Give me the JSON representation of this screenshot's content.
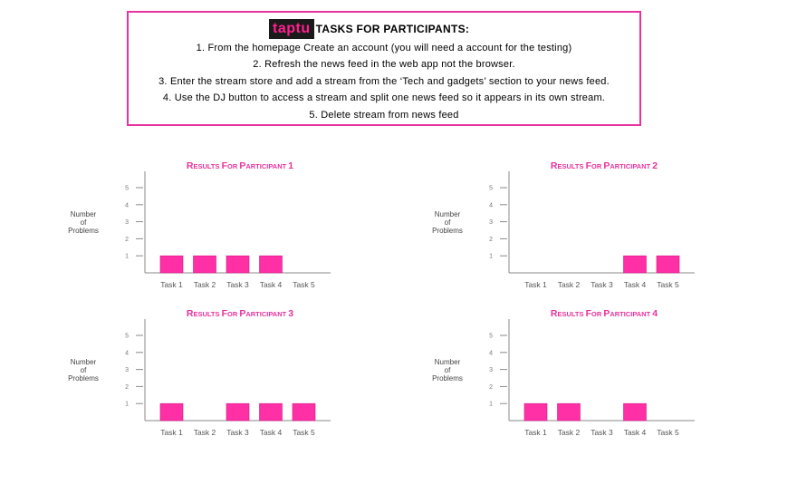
{
  "tasks": {
    "logo": "taptu",
    "title": "TASKS FOR PARTICIPANTS:",
    "items": [
      "1. From the homepage Create an account (you will need a account for the testing)",
      "2. Refresh the news feed in the web app not the browser.",
      "3. Enter the stream store and add a stream from the ‘Tech and gadgets’ section to your news feed.",
      "4. Use the DJ button to access a stream and split one news feed so it appears in its own stream.",
      "5. Delete stream from news feed"
    ]
  },
  "colors": {
    "accent": "#e8329e",
    "bar": "#ff2fa6"
  },
  "chart_data": [
    {
      "type": "bar",
      "title": "Results for Participant 1",
      "ylabel": [
        "Number",
        "of",
        "Problems"
      ],
      "categories": [
        "Task 1",
        "Task 2",
        "Task 3",
        "Task 4",
        "Task 5"
      ],
      "values": [
        1,
        1,
        1,
        1,
        0
      ],
      "yticks": [
        "1",
        "2",
        "3",
        "4",
        "5"
      ],
      "ylim": [
        0,
        5
      ]
    },
    {
      "type": "bar",
      "title": "Results for Participant 2",
      "ylabel": [
        "Number",
        "of",
        "Problems"
      ],
      "categories": [
        "Task 1",
        "Task 2",
        "Task 3",
        "Task 4",
        "Task 5"
      ],
      "values": [
        0,
        0,
        0,
        1,
        1
      ],
      "yticks": [
        "1",
        "2",
        "3",
        "4",
        "5"
      ],
      "ylim": [
        0,
        5
      ]
    },
    {
      "type": "bar",
      "title": "Results for Participant 3",
      "ylabel": [
        "Number",
        "of",
        "Problems"
      ],
      "categories": [
        "Task 1",
        "Task 2",
        "Task 3",
        "Task 4",
        "Task 5"
      ],
      "values": [
        1,
        0,
        1,
        1,
        1
      ],
      "yticks": [
        "1",
        "2",
        "3",
        "4",
        "5"
      ],
      "ylim": [
        0,
        5
      ]
    },
    {
      "type": "bar",
      "title": "Results for Participant 4",
      "ylabel": [
        "Number",
        "of",
        "Problems"
      ],
      "categories": [
        "Task 1",
        "Task 2",
        "Task 3",
        "Task 4",
        "Task 5"
      ],
      "values": [
        1,
        1,
        0,
        1,
        0
      ],
      "yticks": [
        "1",
        "2",
        "3",
        "4",
        "5"
      ],
      "ylim": [
        0,
        5
      ]
    }
  ]
}
